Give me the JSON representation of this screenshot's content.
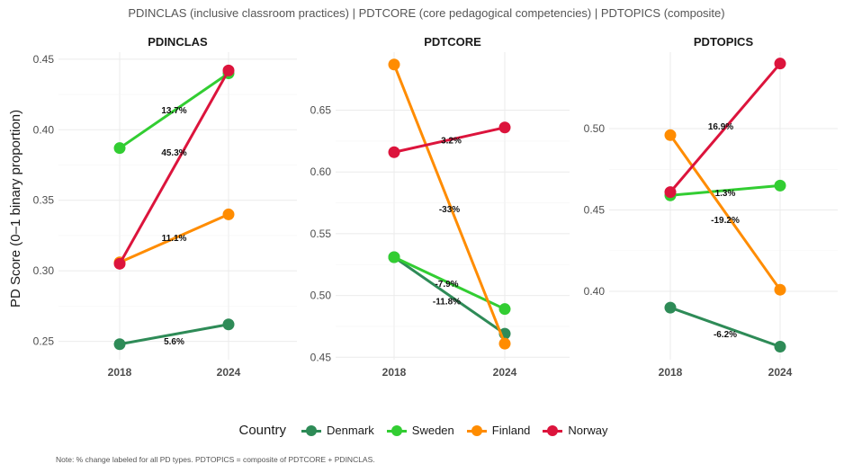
{
  "title": "PDINCLAS (inclusive classroom practices) | PDTCORE (core pedagogical competencies) | PDTOPICS (composite)",
  "caption": "Note: % change labeled for all PD types. PDTOPICS = composite of PDTCORE + PDINCLAS.",
  "legend": {
    "title": "Country",
    "items": [
      {
        "name": "Denmark",
        "color": "#2e8b57"
      },
      {
        "name": "Sweden",
        "color": "#32cd32"
      },
      {
        "name": "Finland",
        "color": "#ff8c00"
      },
      {
        "name": "Norway",
        "color": "#dc143c"
      }
    ]
  },
  "chart_data": [
    {
      "type": "line",
      "title": "PDINCLAS",
      "ylabel": "PD Score (0–1 binary proportion)",
      "x": [
        "2018",
        "2024"
      ],
      "ylim": [
        0.237,
        0.455
      ],
      "yticks": [
        "0.25",
        "0.30",
        "0.35",
        "0.40",
        "0.45"
      ],
      "grid": true,
      "series": [
        {
          "name": "Denmark",
          "values": [
            0.248,
            0.262
          ],
          "pct_label": "5.6%"
        },
        {
          "name": "Sweden",
          "values": [
            0.387,
            0.44
          ],
          "pct_label": "13.7%"
        },
        {
          "name": "Finland",
          "values": [
            0.306,
            0.34
          ],
          "pct_label": "11.1%"
        },
        {
          "name": "Norway",
          "values": [
            0.305,
            0.442
          ],
          "pct_label": "45.3%"
        }
      ]
    },
    {
      "type": "line",
      "title": "PDTCORE",
      "x": [
        "2018",
        "2024"
      ],
      "ylim": [
        0.448,
        0.697
      ],
      "yticks": [
        "0.45",
        "0.50",
        "0.55",
        "0.60",
        "0.65"
      ],
      "grid": true,
      "series": [
        {
          "name": "Denmark",
          "values": [
            0.531,
            0.469
          ],
          "pct_label": "-11.8%"
        },
        {
          "name": "Sweden",
          "values": [
            0.531,
            0.489
          ],
          "pct_label": "-7.9%"
        },
        {
          "name": "Finland",
          "values": [
            0.687,
            0.461
          ],
          "pct_label": "-33%"
        },
        {
          "name": "Norway",
          "values": [
            0.616,
            0.636
          ],
          "pct_label": "3.2%"
        }
      ]
    },
    {
      "type": "line",
      "title": "PDTOPICS",
      "x": [
        "2018",
        "2024"
      ],
      "ylim": [
        0.358,
        0.547
      ],
      "yticks": [
        "0.40",
        "0.45",
        "0.50"
      ],
      "grid": true,
      "series": [
        {
          "name": "Denmark",
          "values": [
            0.39,
            0.366
          ],
          "pct_label": "-6.2%"
        },
        {
          "name": "Sweden",
          "values": [
            0.459,
            0.465
          ],
          "pct_label": "1.3%"
        },
        {
          "name": "Finland",
          "values": [
            0.496,
            0.401
          ],
          "pct_label": "-19.2%"
        },
        {
          "name": "Norway",
          "values": [
            0.461,
            0.54
          ],
          "pct_label": "16.9%"
        }
      ]
    }
  ]
}
